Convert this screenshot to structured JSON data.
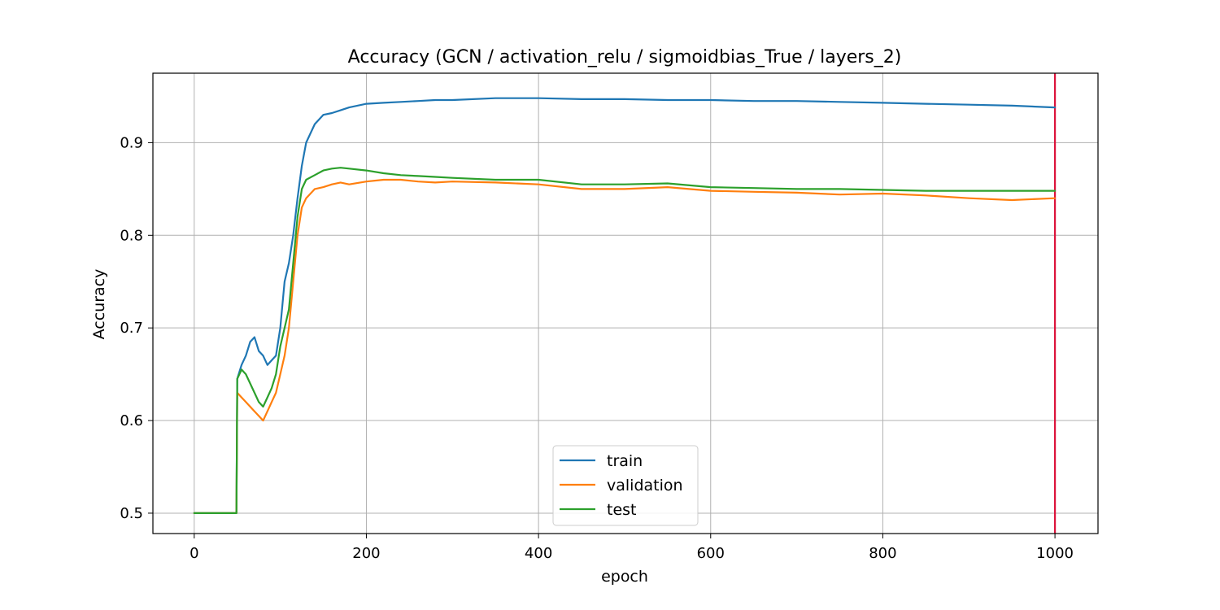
{
  "chart_data": {
    "type": "line",
    "title": "Accuracy (GCN / activation_relu / sigmoidbias_True / layers_2)",
    "xlabel": "epoch",
    "ylabel": "Accuracy",
    "xlim": [
      -48,
      1050
    ],
    "ylim": [
      0.478,
      0.975
    ],
    "xticks": [
      0,
      200,
      400,
      600,
      800,
      1000
    ],
    "yticks": [
      0.5,
      0.6,
      0.7,
      0.8,
      0.9
    ],
    "ytick_labels": [
      "0.5",
      "0.6",
      "0.7",
      "0.8",
      "0.9"
    ],
    "grid": true,
    "legend_position": "bottom-center",
    "vline": {
      "x": 1000,
      "color": "#dc143c"
    },
    "series": [
      {
        "name": "train",
        "color": "#1f77b4",
        "x": [
          0,
          49,
          50,
          55,
          60,
          65,
          70,
          75,
          80,
          85,
          90,
          95,
          100,
          105,
          110,
          115,
          120,
          125,
          130,
          140,
          150,
          160,
          170,
          180,
          200,
          220,
          240,
          260,
          280,
          300,
          350,
          400,
          450,
          500,
          550,
          600,
          650,
          700,
          750,
          800,
          850,
          900,
          950,
          1000
        ],
        "y": [
          0.5,
          0.5,
          0.645,
          0.66,
          0.67,
          0.685,
          0.69,
          0.675,
          0.67,
          0.66,
          0.665,
          0.67,
          0.7,
          0.75,
          0.77,
          0.8,
          0.84,
          0.875,
          0.9,
          0.92,
          0.93,
          0.932,
          0.935,
          0.938,
          0.942,
          0.943,
          0.944,
          0.945,
          0.946,
          0.946,
          0.948,
          0.948,
          0.947,
          0.947,
          0.946,
          0.946,
          0.945,
          0.945,
          0.944,
          0.943,
          0.942,
          0.941,
          0.94,
          0.938
        ]
      },
      {
        "name": "validation",
        "color": "#ff7f0e",
        "x": [
          0,
          49,
          50,
          55,
          60,
          65,
          70,
          75,
          80,
          85,
          90,
          95,
          100,
          105,
          110,
          115,
          120,
          125,
          130,
          140,
          150,
          160,
          170,
          180,
          200,
          220,
          240,
          260,
          280,
          300,
          350,
          400,
          450,
          500,
          550,
          600,
          650,
          700,
          750,
          800,
          850,
          900,
          950,
          1000
        ],
        "y": [
          0.5,
          0.5,
          0.63,
          0.625,
          0.62,
          0.615,
          0.61,
          0.605,
          0.6,
          0.61,
          0.62,
          0.63,
          0.65,
          0.67,
          0.7,
          0.75,
          0.8,
          0.83,
          0.84,
          0.85,
          0.852,
          0.855,
          0.857,
          0.855,
          0.858,
          0.86,
          0.86,
          0.858,
          0.857,
          0.858,
          0.857,
          0.855,
          0.85,
          0.85,
          0.852,
          0.848,
          0.847,
          0.846,
          0.844,
          0.845,
          0.843,
          0.84,
          0.838,
          0.84
        ]
      },
      {
        "name": "test",
        "color": "#2ca02c",
        "x": [
          0,
          49,
          50,
          55,
          60,
          65,
          70,
          75,
          80,
          85,
          90,
          95,
          100,
          105,
          110,
          115,
          120,
          125,
          130,
          140,
          150,
          160,
          170,
          180,
          200,
          220,
          240,
          260,
          280,
          300,
          350,
          400,
          450,
          500,
          550,
          600,
          650,
          700,
          750,
          800,
          850,
          900,
          950,
          1000
        ],
        "y": [
          0.5,
          0.5,
          0.645,
          0.655,
          0.65,
          0.64,
          0.63,
          0.62,
          0.615,
          0.625,
          0.635,
          0.65,
          0.68,
          0.7,
          0.72,
          0.77,
          0.82,
          0.85,
          0.86,
          0.865,
          0.87,
          0.872,
          0.873,
          0.872,
          0.87,
          0.867,
          0.865,
          0.864,
          0.863,
          0.862,
          0.86,
          0.86,
          0.855,
          0.855,
          0.856,
          0.852,
          0.851,
          0.85,
          0.85,
          0.849,
          0.848,
          0.848,
          0.848,
          0.848
        ]
      }
    ]
  }
}
